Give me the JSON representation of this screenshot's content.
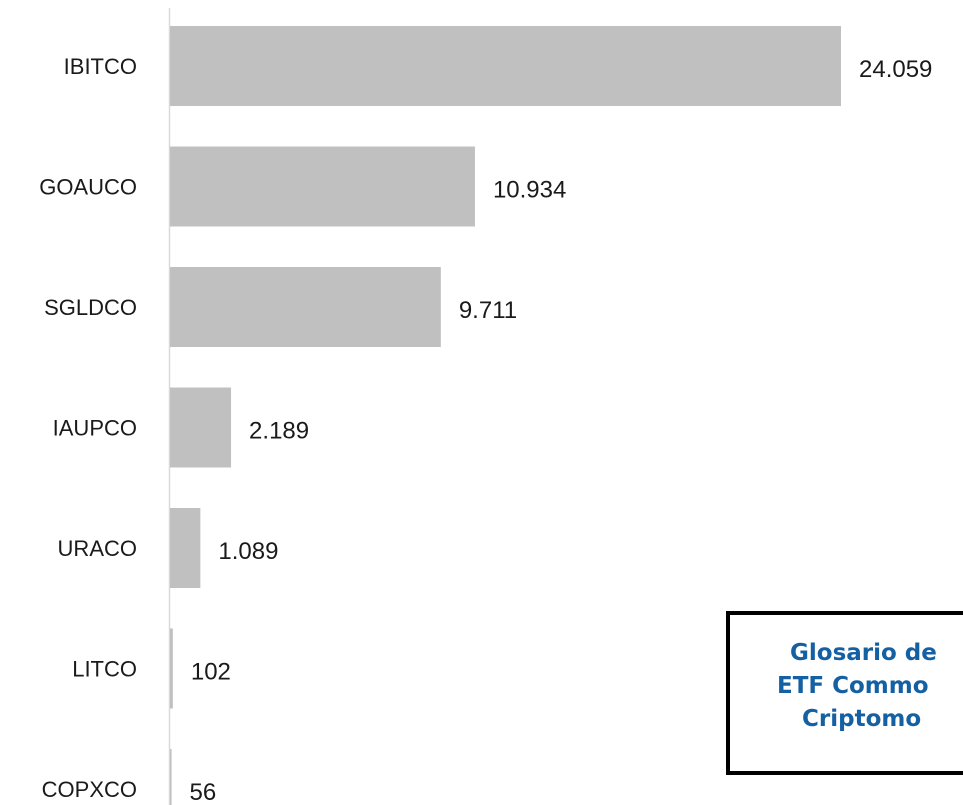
{
  "chart_data": {
    "type": "bar",
    "orientation": "horizontal",
    "categories": [
      "IBITCO",
      "GOAUCO",
      "SGLDCO",
      "IAUPCO",
      "URACO",
      "LITCO",
      "COPXCO"
    ],
    "values": [
      24059,
      10934,
      9711,
      2189,
      1089,
      102,
      56
    ],
    "value_labels": [
      "24.059",
      "10.934",
      "9.711",
      "2.189",
      "1.089",
      "102",
      "56"
    ],
    "title": "",
    "xlabel": "",
    "ylabel": "",
    "xlim": [
      0,
      24059
    ],
    "grid": false,
    "legend": "none",
    "bar_color": "#c0c0c0"
  },
  "note": {
    "lines": [
      "Glosario de",
      "ETF Commo",
      "Criptomo"
    ],
    "text_color": "#1560a3",
    "border_color": "#000000"
  }
}
